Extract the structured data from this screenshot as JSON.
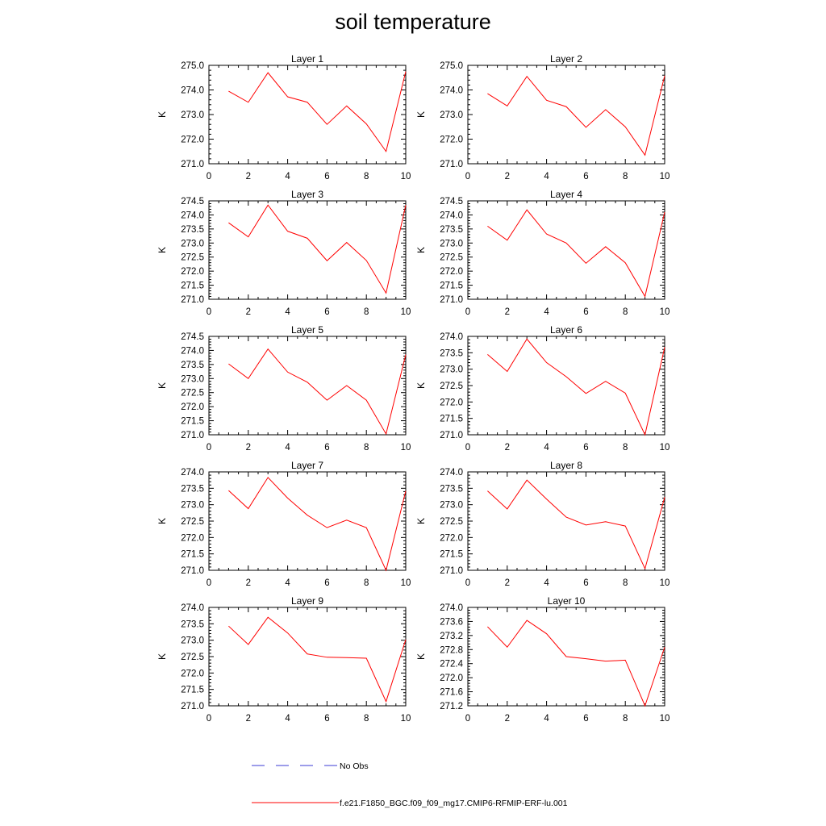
{
  "title": "soil temperature",
  "legend": [
    {
      "label": "No Obs",
      "color": "#3b3bd6",
      "style": "dashed"
    },
    {
      "label": "f.e21.F1850_BGC.f09_f09_mg17.CMIP6-RFMIP-ERF-lu.001",
      "color": "#ff0000",
      "style": "solid"
    }
  ],
  "chart_data": [
    {
      "type": "line",
      "title": "Layer 1",
      "ylabel": "K",
      "xlim": [
        0,
        10
      ],
      "ylim": [
        271.0,
        275.0
      ],
      "xticks": [
        "0",
        "2",
        "4",
        "6",
        "8",
        "10"
      ],
      "yticks": [
        "271.0",
        "272.0",
        "273.0",
        "274.0",
        "275.0"
      ],
      "series": [
        {
          "color": "#ff0000",
          "x": [
            1,
            2,
            3,
            4,
            5,
            6,
            7,
            8,
            9,
            10
          ],
          "values": [
            273.95,
            273.5,
            274.7,
            273.72,
            273.5,
            272.6,
            273.35,
            272.62,
            271.5,
            274.75
          ]
        }
      ]
    },
    {
      "type": "line",
      "title": "Layer 2",
      "ylabel": "K",
      "xlim": [
        0,
        10
      ],
      "ylim": [
        271.0,
        275.0
      ],
      "xticks": [
        "0",
        "2",
        "4",
        "6",
        "8",
        "10"
      ],
      "yticks": [
        "271.0",
        "272.0",
        "273.0",
        "274.0",
        "275.0"
      ],
      "series": [
        {
          "color": "#ff0000",
          "x": [
            1,
            2,
            3,
            4,
            5,
            6,
            7,
            8,
            9,
            10
          ],
          "values": [
            273.85,
            273.35,
            274.55,
            273.58,
            273.32,
            272.48,
            273.2,
            272.5,
            271.35,
            274.58
          ]
        }
      ]
    },
    {
      "type": "line",
      "title": "Layer 3",
      "ylabel": "K",
      "xlim": [
        0,
        10
      ],
      "ylim": [
        271.0,
        274.5
      ],
      "xticks": [
        "0",
        "2",
        "4",
        "6",
        "8",
        "10"
      ],
      "yticks": [
        "271.0",
        "271.5",
        "272.0",
        "272.5",
        "273.0",
        "273.5",
        "274.0",
        "274.5"
      ],
      "series": [
        {
          "color": "#ff0000",
          "x": [
            1,
            2,
            3,
            4,
            5,
            6,
            7,
            8,
            9,
            10
          ],
          "values": [
            273.72,
            273.22,
            274.35,
            273.42,
            273.17,
            272.37,
            273.02,
            272.38,
            271.22,
            274.35
          ]
        }
      ]
    },
    {
      "type": "line",
      "title": "Layer 4",
      "ylabel": "K",
      "xlim": [
        0,
        10
      ],
      "ylim": [
        271.0,
        274.5
      ],
      "xticks": [
        "0",
        "2",
        "4",
        "6",
        "8",
        "10"
      ],
      "yticks": [
        "271.0",
        "271.5",
        "272.0",
        "272.5",
        "273.0",
        "273.5",
        "274.0",
        "274.5"
      ],
      "series": [
        {
          "color": "#ff0000",
          "x": [
            1,
            2,
            3,
            4,
            5,
            6,
            7,
            8,
            9,
            10
          ],
          "values": [
            273.6,
            273.1,
            274.18,
            273.32,
            273.0,
            272.28,
            272.87,
            272.3,
            271.1,
            274.1
          ]
        }
      ]
    },
    {
      "type": "line",
      "title": "Layer 5",
      "ylabel": "K",
      "xlim": [
        0,
        10
      ],
      "ylim": [
        271.0,
        274.5
      ],
      "xticks": [
        "0",
        "2",
        "4",
        "6",
        "8",
        "10"
      ],
      "yticks": [
        "271.0",
        "271.5",
        "272.0",
        "272.5",
        "273.0",
        "273.5",
        "274.0",
        "274.5"
      ],
      "series": [
        {
          "color": "#ff0000",
          "x": [
            1,
            2,
            3,
            4,
            5,
            6,
            7,
            8,
            9,
            10
          ],
          "values": [
            273.52,
            273.0,
            274.05,
            273.23,
            272.87,
            272.23,
            272.75,
            272.23,
            271.03,
            273.85
          ]
        }
      ]
    },
    {
      "type": "line",
      "title": "Layer 6",
      "ylabel": "K",
      "xlim": [
        0,
        10
      ],
      "ylim": [
        271.0,
        274.0
      ],
      "xticks": [
        "0",
        "2",
        "4",
        "6",
        "8",
        "10"
      ],
      "yticks": [
        "271.0",
        "271.5",
        "272.0",
        "272.5",
        "273.0",
        "273.5",
        "274.0"
      ],
      "series": [
        {
          "color": "#ff0000",
          "x": [
            1,
            2,
            3,
            4,
            5,
            6,
            7,
            8,
            9,
            10
          ],
          "values": [
            273.45,
            272.93,
            273.92,
            273.2,
            272.77,
            272.26,
            272.63,
            272.27,
            271.0,
            273.67
          ]
        }
      ]
    },
    {
      "type": "line",
      "title": "Layer 7",
      "ylabel": "K",
      "xlim": [
        0,
        10
      ],
      "ylim": [
        271.0,
        274.0
      ],
      "xticks": [
        "0",
        "2",
        "4",
        "6",
        "8",
        "10"
      ],
      "yticks": [
        "271.0",
        "271.5",
        "272.0",
        "272.5",
        "273.0",
        "273.5",
        "274.0"
      ],
      "series": [
        {
          "color": "#ff0000",
          "x": [
            1,
            2,
            3,
            4,
            5,
            6,
            7,
            8,
            9,
            10
          ],
          "values": [
            273.43,
            272.88,
            273.83,
            273.2,
            272.68,
            272.3,
            272.53,
            272.3,
            271.0,
            273.42
          ]
        }
      ]
    },
    {
      "type": "line",
      "title": "Layer 8",
      "ylabel": "K",
      "xlim": [
        0,
        10
      ],
      "ylim": [
        271.0,
        274.0
      ],
      "xticks": [
        "0",
        "2",
        "4",
        "6",
        "8",
        "10"
      ],
      "yticks": [
        "271.0",
        "271.5",
        "272.0",
        "272.5",
        "273.0",
        "273.5",
        "274.0"
      ],
      "series": [
        {
          "color": "#ff0000",
          "x": [
            1,
            2,
            3,
            4,
            5,
            6,
            7,
            8,
            9,
            10
          ],
          "values": [
            273.42,
            272.87,
            273.75,
            273.17,
            272.62,
            272.38,
            272.48,
            272.35,
            271.05,
            273.23
          ]
        }
      ]
    },
    {
      "type": "line",
      "title": "Layer 9",
      "ylabel": "K",
      "xlim": [
        0,
        10
      ],
      "ylim": [
        271.0,
        274.0
      ],
      "xticks": [
        "0",
        "2",
        "4",
        "6",
        "8",
        "10"
      ],
      "yticks": [
        "271.0",
        "271.5",
        "272.0",
        "272.5",
        "273.0",
        "273.5",
        "274.0"
      ],
      "series": [
        {
          "color": "#ff0000",
          "x": [
            1,
            2,
            3,
            4,
            5,
            6,
            7,
            8,
            9,
            10
          ],
          "values": [
            273.43,
            272.87,
            273.7,
            273.22,
            272.58,
            272.48,
            272.47,
            272.45,
            271.13,
            273.02
          ]
        }
      ]
    },
    {
      "type": "line",
      "title": "Layer 10",
      "ylabel": "K",
      "xlim": [
        0,
        10
      ],
      "ylim": [
        271.2,
        274.0
      ],
      "xticks": [
        "0",
        "2",
        "4",
        "6",
        "8",
        "10"
      ],
      "yticks": [
        "271.2",
        "271.6",
        "272.0",
        "272.4",
        "272.8",
        "273.2",
        "273.6",
        "274.0"
      ],
      "series": [
        {
          "color": "#ff0000",
          "x": [
            1,
            2,
            3,
            4,
            5,
            6,
            7,
            8,
            9,
            10
          ],
          "values": [
            273.45,
            272.87,
            273.63,
            273.25,
            272.6,
            272.54,
            272.47,
            272.5,
            271.2,
            272.87
          ]
        }
      ]
    }
  ]
}
